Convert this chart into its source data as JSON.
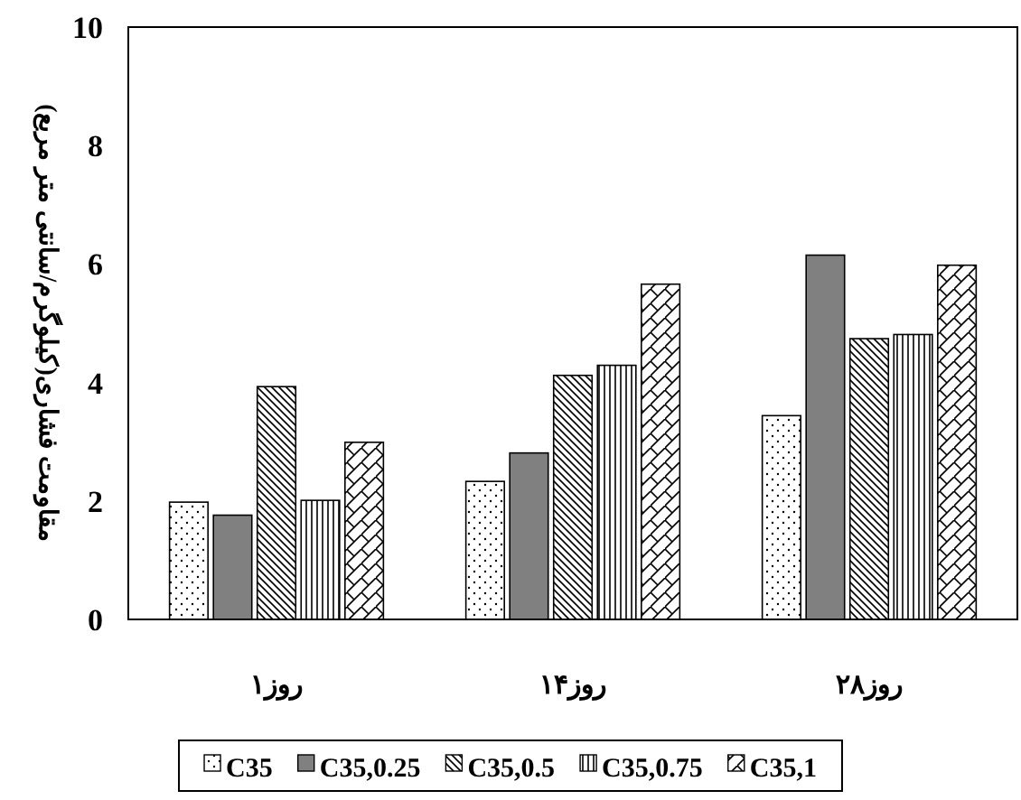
{
  "chart_data": {
    "type": "bar",
    "ylabel": "مقاومت فشاری(کیلوگرم/سانتی متر مربع)",
    "categories": [
      "۱روز",
      "۱۴روز",
      "۲۸روز"
    ],
    "series": [
      {
        "name": "C35",
        "color": "#000000",
        "values": [
          1.98,
          2.33,
          3.44
        ]
      },
      {
        "name": "C35,0.25",
        "color": "#808080",
        "values": [
          1.76,
          2.81,
          6.15
        ]
      },
      {
        "name": "C35,0.5",
        "color": "#000000",
        "values": [
          3.93,
          4.12,
          4.74
        ]
      },
      {
        "name": "C35,0.75",
        "color": "#000000",
        "values": [
          2.01,
          4.29,
          4.81
        ]
      },
      {
        "name": "C35,1",
        "color": "#000000",
        "values": [
          2.99,
          5.66,
          5.98
        ]
      }
    ],
    "ylim": [
      0,
      10
    ],
    "yticks": [
      0,
      2,
      4,
      6,
      8,
      10
    ],
    "grid": false,
    "legend": "bottom"
  }
}
